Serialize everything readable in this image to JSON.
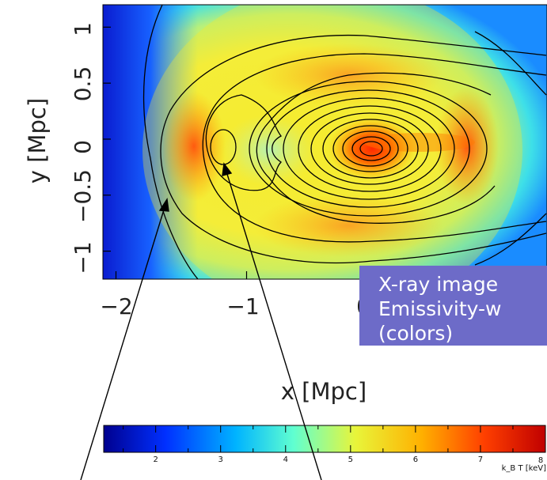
{
  "chart_data": {
    "type": "heatmap",
    "title": "",
    "xlabel": "x [Mpc]",
    "ylabel": "y [Mpc]",
    "xlim": [
      -2.1,
      1.3
    ],
    "ylim": [
      -1.25,
      1.2
    ],
    "x_ticks": [
      {
        "value": -2,
        "label": "−2"
      },
      {
        "value": -1,
        "label": "−1"
      },
      {
        "value": 0,
        "label": "0"
      }
    ],
    "y_ticks": [
      {
        "value": -1,
        "label": "−1"
      },
      {
        "value": -0.5,
        "label": "−0.5"
      },
      {
        "value": 0,
        "label": "0"
      },
      {
        "value": 0.5,
        "label": "0.5"
      },
      {
        "value": 1,
        "label": "1"
      }
    ],
    "colorbar": {
      "min": 1.2,
      "max": 8,
      "ticks": [
        2,
        3,
        4,
        5,
        6,
        7,
        8
      ],
      "label": "k_B T [keV]",
      "colormap": [
        "#00008f",
        "#0044ff",
        "#00c8ff",
        "#80ffb0",
        "#f2f23a",
        "#ffaa00",
        "#ff3300",
        "#c80000"
      ]
    },
    "features": [
      {
        "name": "main-cluster-core",
        "x": 0.0,
        "y": 0.0,
        "value": 7.5
      },
      {
        "name": "subcluster-core",
        "x": -1.05,
        "y": 0.0,
        "value": 4.5
      }
    ],
    "annotation_text": [
      "X-ray image",
      "Emissivity-w",
      "(colors)"
    ]
  }
}
